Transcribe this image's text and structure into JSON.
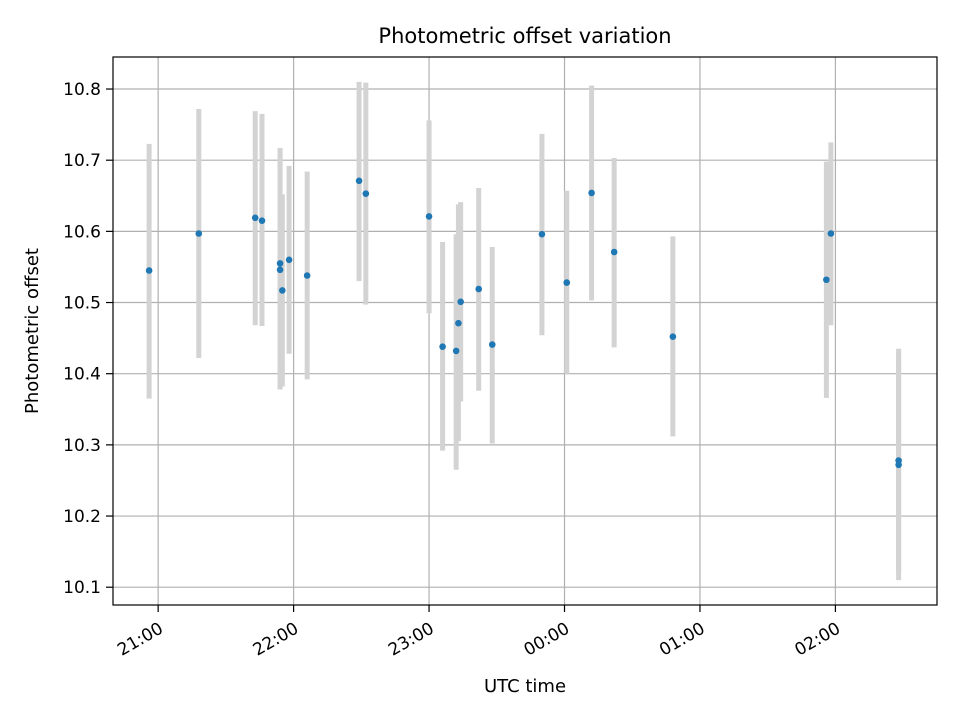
{
  "chart_data": {
    "type": "scatter",
    "title": "Photometric offset variation",
    "xlabel": "UTC time",
    "ylabel": "Photometric offset",
    "x_unit": "UTC time (HH:MM)",
    "xlim": [
      "20:40",
      "02:45 (+1 day)"
    ],
    "ylim": [
      10.075,
      10.845
    ],
    "x_ticks": [
      "21:00",
      "22:00",
      "23:00",
      "00:00",
      "01:00",
      "02:00"
    ],
    "y_ticks": [
      "10.1",
      "10.2",
      "10.3",
      "10.4",
      "10.5",
      "10.6",
      "10.7",
      "10.8"
    ],
    "grid": true,
    "legend": null,
    "colors": {
      "points": "#1f77b4",
      "error_bars": "#d3d3d3",
      "grid": "#b0b0b0"
    },
    "points": [
      {
        "time": "20:56",
        "y": 10.545,
        "ylow": 10.365,
        "yhigh": 10.723
      },
      {
        "time": "21:18",
        "y": 10.597,
        "ylow": 10.422,
        "yhigh": 10.772
      },
      {
        "time": "21:43",
        "y": 10.619,
        "ylow": 10.468,
        "yhigh": 10.769
      },
      {
        "time": "21:46",
        "y": 10.615,
        "ylow": 10.467,
        "yhigh": 10.765
      },
      {
        "time": "21:54",
        "y": 10.555,
        "ylow": 10.378,
        "yhigh": 10.717
      },
      {
        "time": "21:54",
        "y": 10.546,
        "ylow": 10.378,
        "yhigh": 10.717
      },
      {
        "time": "21:55",
        "y": 10.517,
        "ylow": 10.382,
        "yhigh": 10.652
      },
      {
        "time": "21:58",
        "y": 10.56,
        "ylow": 10.428,
        "yhigh": 10.692
      },
      {
        "time": "22:06",
        "y": 10.538,
        "ylow": 10.392,
        "yhigh": 10.684
      },
      {
        "time": "22:29",
        "y": 10.671,
        "ylow": 10.53,
        "yhigh": 10.81
      },
      {
        "time": "22:32",
        "y": 10.653,
        "ylow": 10.497,
        "yhigh": 10.809
      },
      {
        "time": "23:00",
        "y": 10.621,
        "ylow": 10.485,
        "yhigh": 10.756
      },
      {
        "time": "23:06",
        "y": 10.438,
        "ylow": 10.292,
        "yhigh": 10.585
      },
      {
        "time": "23:12",
        "y": 10.432,
        "ylow": 10.265,
        "yhigh": 10.596
      },
      {
        "time": "23:13",
        "y": 10.471,
        "ylow": 10.305,
        "yhigh": 10.638
      },
      {
        "time": "23:14",
        "y": 10.501,
        "ylow": 10.361,
        "yhigh": 10.641
      },
      {
        "time": "23:22",
        "y": 10.519,
        "ylow": 10.376,
        "yhigh": 10.661
      },
      {
        "time": "23:28",
        "y": 10.441,
        "ylow": 10.302,
        "yhigh": 10.578
      },
      {
        "time": "23:50",
        "y": 10.596,
        "ylow": 10.454,
        "yhigh": 10.737
      },
      {
        "time": "00:01",
        "y": 10.528,
        "ylow": 10.4,
        "yhigh": 10.657
      },
      {
        "time": "00:12",
        "y": 10.654,
        "ylow": 10.503,
        "yhigh": 10.805
      },
      {
        "time": "00:22",
        "y": 10.571,
        "ylow": 10.437,
        "yhigh": 10.703
      },
      {
        "time": "00:48",
        "y": 10.452,
        "ylow": 10.312,
        "yhigh": 10.593
      },
      {
        "time": "01:56",
        "y": 10.532,
        "ylow": 10.366,
        "yhigh": 10.698
      },
      {
        "time": "01:58",
        "y": 10.597,
        "ylow": 10.468,
        "yhigh": 10.725
      },
      {
        "time": "02:28",
        "y": 10.278,
        "ylow": 10.12,
        "yhigh": 10.435
      },
      {
        "time": "02:28",
        "y": 10.272,
        "ylow": 10.11,
        "yhigh": 10.43
      }
    ]
  }
}
